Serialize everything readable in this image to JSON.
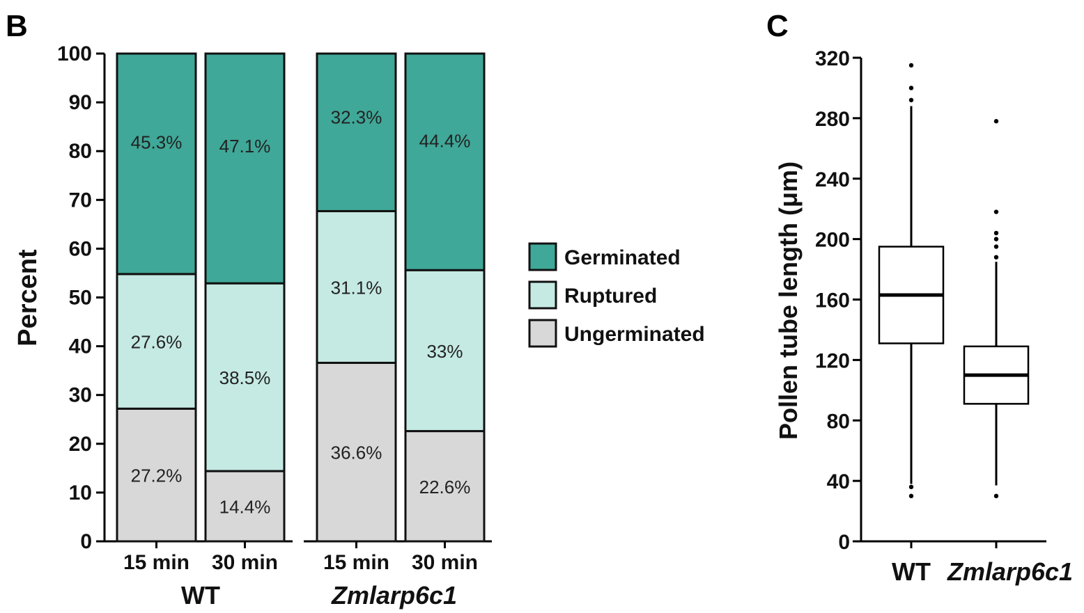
{
  "panels": {
    "b_label": "B",
    "c_label": "C"
  },
  "colors": {
    "germinated": "#3fa898",
    "ruptured": "#c5eae3",
    "ungerminated": "#d8d8d8"
  },
  "chart_data": [
    {
      "type": "bar",
      "stacked": true,
      "ylabel": "Percent",
      "ylim": [
        0,
        100
      ],
      "yticks": [
        0,
        10,
        20,
        30,
        40,
        50,
        60,
        70,
        80,
        90,
        100
      ],
      "groups": [
        {
          "name": "WT",
          "italic": false,
          "categories": [
            "15 min",
            "30 min"
          ]
        },
        {
          "name": "Zmlarp6c1",
          "italic": true,
          "categories": [
            "15 min",
            "30 min"
          ]
        }
      ],
      "categories": [
        "15 min",
        "30 min",
        "15 min",
        "30 min"
      ],
      "series": [
        {
          "name": "Ungerminated",
          "values": [
            27.2,
            14.4,
            36.6,
            22.6
          ],
          "labels": [
            "27.2%",
            "14.4%",
            "36.6%",
            "22.6%"
          ]
        },
        {
          "name": "Ruptured",
          "values": [
            27.6,
            38.5,
            31.1,
            33
          ],
          "labels": [
            "27.6%",
            "38.5%",
            "31.1%",
            "33%"
          ]
        },
        {
          "name": "Germinated",
          "values": [
            45.3,
            47.1,
            32.3,
            44.4
          ],
          "labels": [
            "45.3%",
            "47.1%",
            "32.3%",
            "44.4%"
          ]
        }
      ],
      "legend": [
        "Germinated",
        "Ruptured",
        "Ungerminated"
      ],
      "legend_position": "right"
    },
    {
      "type": "box",
      "ylabel": "Pollen tube length (μm)",
      "ylim": [
        0,
        320
      ],
      "yticks": [
        0,
        40,
        80,
        120,
        160,
        200,
        240,
        280,
        320
      ],
      "categories": [
        "WT",
        "Zmlarp6c1"
      ],
      "category_italic": [
        false,
        true
      ],
      "boxes": [
        {
          "q1": 131,
          "median": 163,
          "q3": 195,
          "whisker_low": 38,
          "whisker_high": 288,
          "outliers": [
            30,
            36,
            292,
            300,
            315
          ]
        },
        {
          "q1": 91,
          "median": 110,
          "q3": 129,
          "whisker_low": 37,
          "whisker_high": 185,
          "outliers": [
            30,
            188,
            195,
            200,
            204,
            218,
            278
          ]
        }
      ]
    }
  ]
}
